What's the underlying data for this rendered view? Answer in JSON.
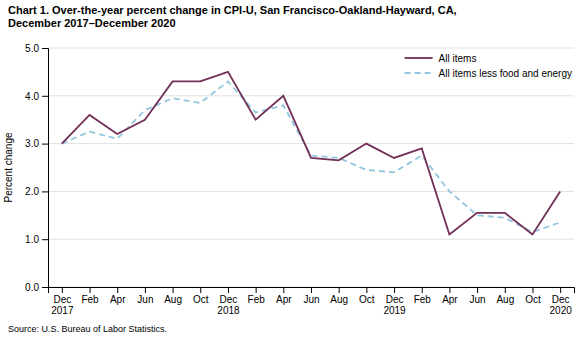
{
  "chart_data": {
    "type": "line",
    "title": "Chart 1. Over-the-year percent change in CPI-U, San Francisco-Oakland-Hayward, CA,\nDecember 2017–December 2020",
    "ylabel": "Percent change",
    "annotations": [
      "Source: U.S. Bureau of Labor Statistics."
    ],
    "categories": [
      "Dec\n2017",
      "Feb",
      "Apr",
      "Jun",
      "Aug",
      "Oct",
      "Dec\n2018",
      "Feb",
      "Apr",
      "Jun",
      "Aug",
      "Oct",
      "Dec\n2019",
      "Feb",
      "Apr",
      "Jun",
      "Aug",
      "Oct",
      "Dec\n2020"
    ],
    "series": [
      {
        "name": "All items",
        "color": "#722F57",
        "line_style": "solid",
        "values": [
          3.0,
          3.6,
          3.2,
          3.5,
          4.3,
          4.3,
          4.5,
          3.5,
          4.0,
          2.7,
          2.65,
          3.0,
          2.7,
          2.9,
          1.1,
          1.55,
          1.55,
          1.1,
          2.0
        ]
      },
      {
        "name": "All items less food and energy",
        "color": "#92C5DE",
        "line_style": "dashed",
        "values": [
          3.0,
          3.25,
          3.1,
          3.7,
          3.95,
          3.85,
          4.3,
          3.65,
          3.8,
          2.75,
          2.7,
          2.45,
          2.4,
          2.75,
          2.0,
          1.5,
          1.45,
          1.15,
          1.35
        ]
      }
    ],
    "ylim": [
      0.0,
      5.0
    ],
    "yticks": [
      {
        "value": 0,
        "label": "0.0"
      },
      {
        "value": 1,
        "label": "1.0"
      },
      {
        "value": 2,
        "label": "2.0"
      },
      {
        "value": 3,
        "label": "3.0"
      },
      {
        "value": 4,
        "label": "4.0"
      },
      {
        "value": 5,
        "label": "5.0"
      }
    ],
    "grid": true,
    "legend": "upper right"
  }
}
